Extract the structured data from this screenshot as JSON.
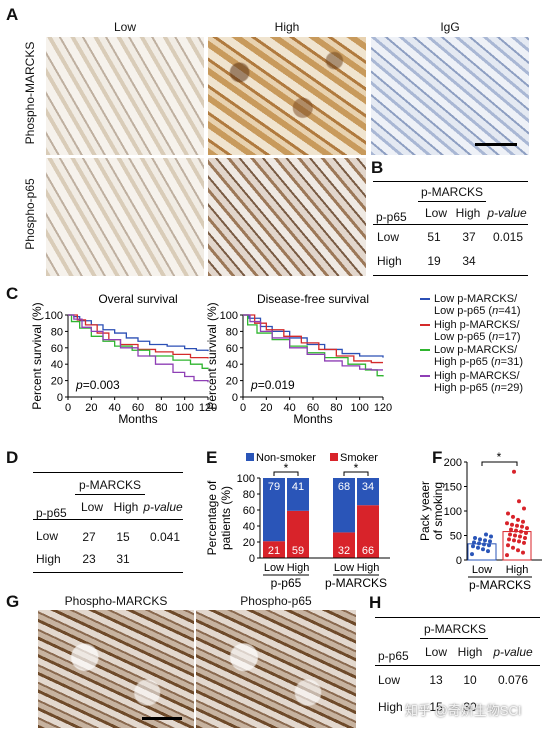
{
  "panelA": {
    "label": "A",
    "col_titles": [
      "Low",
      "High",
      "IgG"
    ],
    "row_titles": [
      "Phospho-MARCKS",
      "Phospho-p65"
    ]
  },
  "panelB": {
    "label": "B",
    "header": "p-MARCKS",
    "row_header": "p-p65",
    "cols": [
      "Low",
      "High",
      "p-value"
    ],
    "rows": [
      {
        "name": "Low",
        "values": [
          "51",
          "37",
          "0.015"
        ]
      },
      {
        "name": "High",
        "values": [
          "19",
          "34",
          ""
        ]
      }
    ]
  },
  "panelC": {
    "label": "C",
    "legend": [
      {
        "line1": "Low p-MARCKS/",
        "line2_pre": "Low p-p65 (",
        "n": "n",
        "line2_post": "=41)",
        "color": "#2b4fb5"
      },
      {
        "line1": "High p-MARCKS/",
        "line2_pre": "Low p-p65 (",
        "n": "n",
        "line2_post": "=17)",
        "color": "#d42a2a"
      },
      {
        "line1": "Low p-MARCKS/",
        "line2_pre": "High p-p65 (",
        "n": "n",
        "line2_post": "=31)",
        "color": "#2fb52f"
      },
      {
        "line1": "High p-MARCKS/",
        "line2_pre": "High p-p65 (",
        "n": "n",
        "line2_post": "=29)",
        "color": "#8e3fb5"
      }
    ]
  },
  "chart_data": [
    {
      "type": "line",
      "title": "Overal survival",
      "xlabel": "Months",
      "ylabel": "Percent survival (%)",
      "xlim": [
        0,
        120
      ],
      "ylim": [
        0,
        100
      ],
      "xticks": [
        "0",
        "20",
        "40",
        "60",
        "80",
        "100",
        "120"
      ],
      "yticks": [
        "0",
        "20",
        "40",
        "60",
        "80",
        "100"
      ],
      "annotation": {
        "p": "p",
        "value": "=0.003"
      },
      "series": [
        {
          "color": "#2b4fb5",
          "points": [
            [
              0,
              100
            ],
            [
              5,
              98
            ],
            [
              10,
              93
            ],
            [
              20,
              88
            ],
            [
              30,
              82
            ],
            [
              40,
              78
            ],
            [
              50,
              72
            ],
            [
              60,
              68
            ],
            [
              70,
              64
            ],
            [
              85,
              62
            ],
            [
              100,
              59
            ],
            [
              110,
              57
            ],
            [
              120,
              56
            ]
          ]
        },
        {
          "color": "#d42a2a",
          "points": [
            [
              0,
              100
            ],
            [
              8,
              94
            ],
            [
              15,
              88
            ],
            [
              25,
              78
            ],
            [
              35,
              70
            ],
            [
              45,
              64
            ],
            [
              60,
              58
            ],
            [
              75,
              55
            ],
            [
              90,
              52
            ],
            [
              105,
              48
            ],
            [
              120,
              47
            ]
          ]
        },
        {
          "color": "#2fb52f",
          "points": [
            [
              0,
              100
            ],
            [
              3,
              92
            ],
            [
              10,
              84
            ],
            [
              20,
              74
            ],
            [
              30,
              68
            ],
            [
              40,
              62
            ],
            [
              55,
              57
            ],
            [
              70,
              50
            ],
            [
              90,
              45
            ],
            [
              105,
              40
            ],
            [
              115,
              35
            ],
            [
              120,
              34
            ]
          ]
        },
        {
          "color": "#8e3fb5",
          "points": [
            [
              0,
              100
            ],
            [
              5,
              95
            ],
            [
              12,
              85
            ],
            [
              20,
              80
            ],
            [
              30,
              70
            ],
            [
              45,
              60
            ],
            [
              60,
              50
            ],
            [
              75,
              40
            ],
            [
              90,
              30
            ],
            [
              100,
              25
            ],
            [
              108,
              20
            ],
            [
              120,
              18
            ]
          ]
        }
      ]
    },
    {
      "type": "line",
      "title": "Disease-free survival",
      "xlabel": "Months",
      "ylabel": "Percent survival (%)",
      "xlim": [
        0,
        120
      ],
      "ylim": [
        0,
        100
      ],
      "xticks": [
        "0",
        "20",
        "40",
        "60",
        "80",
        "100",
        "120"
      ],
      "yticks": [
        "0",
        "20",
        "40",
        "60",
        "80",
        "100"
      ],
      "annotation": {
        "p": "p",
        "value": "=0.019"
      },
      "series": [
        {
          "color": "#2b4fb5",
          "points": [
            [
              0,
              100
            ],
            [
              5,
              96
            ],
            [
              15,
              86
            ],
            [
              25,
              80
            ],
            [
              40,
              72
            ],
            [
              55,
              64
            ],
            [
              70,
              58
            ],
            [
              85,
              53
            ],
            [
              100,
              50
            ],
            [
              120,
              48
            ]
          ]
        },
        {
          "color": "#d42a2a",
          "points": [
            [
              0,
              100
            ],
            [
              10,
              90
            ],
            [
              20,
              82
            ],
            [
              35,
              74
            ],
            [
              50,
              66
            ],
            [
              65,
              58
            ],
            [
              80,
              50
            ],
            [
              95,
              44
            ],
            [
              110,
              42
            ],
            [
              120,
              42
            ]
          ]
        },
        {
          "color": "#2fb52f",
          "points": [
            [
              0,
              100
            ],
            [
              4,
              88
            ],
            [
              12,
              78
            ],
            [
              25,
              70
            ],
            [
              40,
              62
            ],
            [
              55,
              54
            ],
            [
              70,
              48
            ],
            [
              90,
              40
            ],
            [
              105,
              33
            ],
            [
              115,
              26
            ],
            [
              120,
              25
            ]
          ]
        },
        {
          "color": "#8e3fb5",
          "points": [
            [
              0,
              100
            ],
            [
              6,
              92
            ],
            [
              15,
              80
            ],
            [
              25,
              72
            ],
            [
              40,
              60
            ],
            [
              55,
              52
            ],
            [
              70,
              44
            ],
            [
              85,
              38
            ],
            [
              100,
              34
            ],
            [
              110,
              33
            ],
            [
              120,
              33
            ]
          ]
        }
      ]
    },
    {
      "type": "bar",
      "stacked": true,
      "ylabel": "Percentage of patients (%)",
      "ylim": [
        0,
        100
      ],
      "yticks": [
        "0",
        "20",
        "40",
        "60",
        "80",
        "100"
      ],
      "legend": [
        "Non-smoker",
        "Smoker"
      ],
      "colors": {
        "nonsmoker": "#2a55b8",
        "smoker": "#d8232a"
      },
      "groups": [
        {
          "name": "p-p65",
          "bars": [
            {
              "label": "Low",
              "smoker": 21,
              "nonsmoker": 79
            },
            {
              "label": "High",
              "smoker": 59,
              "nonsmoker": 41
            }
          ]
        },
        {
          "name": "p-MARCKS",
          "bars": [
            {
              "label": "Low",
              "smoker": 32,
              "nonsmoker": 68
            },
            {
              "label": "High",
              "smoker": 66,
              "nonsmoker": 34
            }
          ]
        }
      ],
      "significance": "*"
    },
    {
      "type": "scatter",
      "ylabel_line1": "Pack yeaer",
      "ylabel_line2": "of smoking",
      "ylim": [
        0,
        200
      ],
      "yticks": [
        "0",
        "50",
        "100",
        "150",
        "200"
      ],
      "group_label": "p-MARCKS",
      "categories": [
        "Low",
        "High"
      ],
      "colors": {
        "Low": "#2a55b8",
        "High": "#d8232a"
      },
      "bar_means": [
        33,
        58
      ],
      "points": {
        "Low": [
          12,
          18,
          22,
          25,
          28,
          30,
          32,
          34,
          36,
          38,
          40,
          42,
          45,
          48,
          52
        ],
        "High": [
          10,
          15,
          20,
          25,
          30,
          35,
          38,
          40,
          42,
          45,
          48,
          50,
          52,
          55,
          58,
          60,
          62,
          65,
          68,
          70,
          72,
          75,
          78,
          82,
          88,
          95,
          105,
          120,
          180
        ]
      },
      "significance": "*"
    }
  ],
  "panelD": {
    "label": "D",
    "header": "p-MARCKS",
    "row_header": "p-p65",
    "cols": [
      "Low",
      "High",
      "p-value"
    ],
    "rows": [
      {
        "name": "Low",
        "values": [
          "27",
          "15",
          "0.041"
        ]
      },
      {
        "name": "High",
        "values": [
          "23",
          "31",
          ""
        ]
      }
    ]
  },
  "panelE": {
    "label": "E"
  },
  "panelF": {
    "label": "F"
  },
  "panelG": {
    "label": "G",
    "col_titles": [
      "Phospho-MARCKS",
      "Phospho-p65"
    ]
  },
  "panelH": {
    "label": "H",
    "header": "p-MARCKS",
    "row_header": "p-p65",
    "cols": [
      "Low",
      "High",
      "p-value"
    ],
    "rows": [
      {
        "name": "Low",
        "values": [
          "13",
          "10",
          "0.076"
        ]
      },
      {
        "name": "High",
        "values": [
          "15",
          "30",
          ""
        ]
      }
    ]
  },
  "watermark": "知乎 @奇妍生物SCI"
}
